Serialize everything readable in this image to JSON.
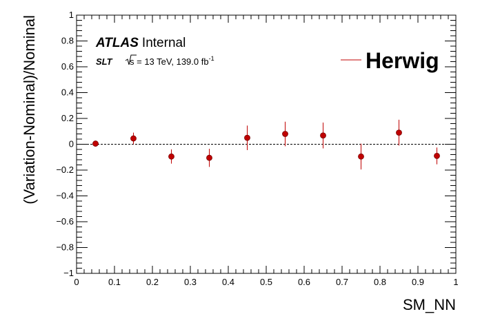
{
  "chart_data": {
    "type": "scatter",
    "xlabel": "SM_NN",
    "ylabel": "(Variation-Nominal)/Nominal",
    "xlim": [
      0,
      1
    ],
    "ylim": [
      -1,
      1
    ],
    "x_ticks": [
      "0",
      "0.1",
      "0.2",
      "0.3",
      "0.4",
      "0.5",
      "0.6",
      "0.7",
      "0.8",
      "0.9",
      "1"
    ],
    "y_ticks": [
      "−1",
      "−0.8",
      "−0.6",
      "−0.4",
      "−0.2",
      "0",
      "0.2",
      "0.4",
      "0.6",
      "0.8",
      "1"
    ],
    "reference_line_y": 0,
    "legend_position": "top-right",
    "label": {
      "experiment": "ATLAS",
      "status": "Internal",
      "channel": "SLT",
      "energy_text": "s = 13 TeV, 139.0 fb",
      "lumi_exponent": "-1"
    },
    "series": [
      {
        "name": "Herwig",
        "color": "#c00000",
        "x": [
          0.05,
          0.15,
          0.25,
          0.35,
          0.45,
          0.55,
          0.65,
          0.75,
          0.85,
          0.95
        ],
        "y": [
          0.005,
          0.045,
          -0.095,
          -0.105,
          0.05,
          0.08,
          0.068,
          -0.095,
          0.09,
          -0.09
        ],
        "yerr": [
          0.01,
          0.045,
          0.055,
          0.07,
          0.095,
          0.095,
          0.1,
          0.1,
          0.1,
          0.065
        ]
      }
    ]
  }
}
